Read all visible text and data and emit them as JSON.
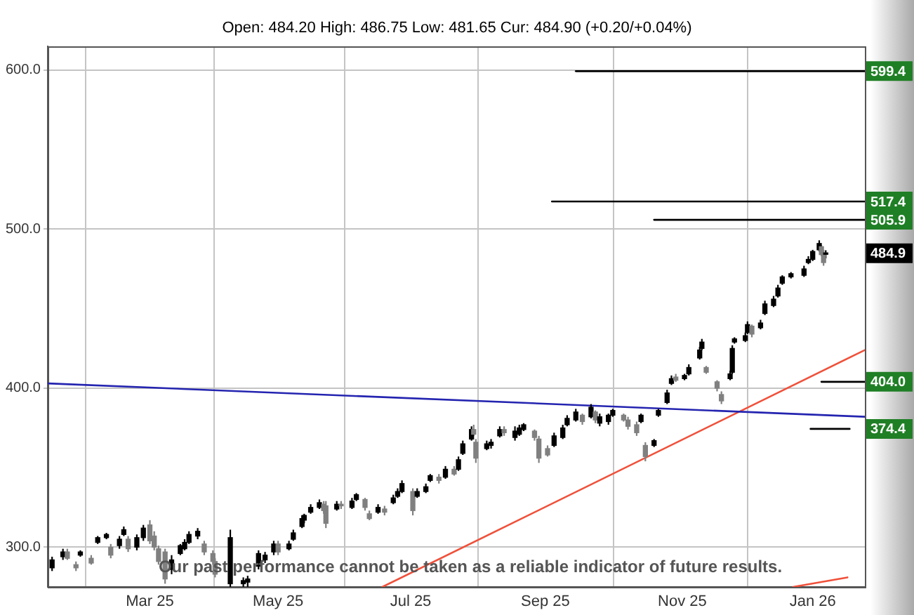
{
  "chart_data": {
    "type": "candlestick",
    "subtitle": "Open: 484.20 High: 486.75 Low: 481.65 Cur: 484.90 (+0.20/+0.04%)",
    "annotations": [
      "Our past performance cannot be taken as a reliable indicator of future results."
    ],
    "xlim": [
      "2025-01-15",
      "2026-01-26"
    ],
    "xticks": [
      {
        "value": "2025-03-03",
        "label": "Mar 25"
      },
      {
        "value": "2025-05-01",
        "label": "May 25"
      },
      {
        "value": "2025-07-01",
        "label": "Jul 25"
      },
      {
        "value": "2025-09-01",
        "label": "Sep 25"
      },
      {
        "value": "2025-11-03",
        "label": "Nov 25"
      },
      {
        "value": "2026-01-02",
        "label": "Jan 26"
      }
    ],
    "ylim": [
      275,
      615
    ],
    "yticks": [
      {
        "value": 300,
        "label": "300.0"
      },
      {
        "value": 400,
        "label": "400.0"
      },
      {
        "value": 500,
        "label": "500.0"
      },
      {
        "value": 600,
        "label": "600.0"
      }
    ],
    "grid": true,
    "series": [
      {
        "x": [
          "2025-01-17",
          "2025-01-22",
          "2025-01-24",
          "2025-01-28",
          "2025-01-30",
          "2025-02-04",
          "2025-02-07",
          "2025-02-11",
          "2025-02-13",
          "2025-02-17",
          "2025-02-19",
          "2025-02-21",
          "2025-02-25",
          "2025-02-28",
          "2025-03-03",
          "2025-03-05",
          "2025-03-07",
          "2025-03-10",
          "2025-03-13",
          "2025-03-17",
          "2025-03-19",
          "2025-03-21",
          "2025-03-25",
          "2025-03-28",
          "2025-04-01",
          "2025-04-02",
          "2025-04-09",
          "2025-04-15",
          "2025-04-17",
          "2025-04-22",
          "2025-04-25",
          "2025-04-29",
          "2025-05-01",
          "2025-05-06",
          "2025-05-08",
          "2025-05-12",
          "2025-05-13",
          "2025-05-16",
          "2025-05-20",
          "2025-05-22",
          "2025-05-23",
          "2025-05-28",
          "2025-05-30",
          "2025-06-04",
          "2025-06-06",
          "2025-06-10",
          "2025-06-12",
          "2025-06-16",
          "2025-06-19",
          "2025-06-23",
          "2025-06-25",
          "2025-06-27",
          "2025-07-02",
          "2025-07-04",
          "2025-07-08",
          "2025-07-10",
          "2025-07-14",
          "2025-07-17",
          "2025-07-21",
          "2025-07-23",
          "2025-07-25",
          "2025-07-29",
          "2025-07-30",
          "2025-07-31",
          "2025-08-05",
          "2025-08-07",
          "2025-08-11",
          "2025-08-13",
          "2025-08-18",
          "2025-08-20",
          "2025-08-22",
          "2025-08-27",
          "2025-08-29",
          "2025-09-02",
          "2025-09-05",
          "2025-09-09",
          "2025-09-11",
          "2025-09-15",
          "2025-09-18",
          "2025-09-22",
          "2025-09-24",
          "2025-09-26",
          "2025-09-30",
          "2025-10-02",
          "2025-10-07",
          "2025-10-09",
          "2025-10-13",
          "2025-10-15",
          "2025-10-17",
          "2025-10-21",
          "2025-10-23",
          "2025-10-27",
          "2025-10-29",
          "2025-10-31",
          "2025-11-04",
          "2025-11-06",
          "2025-11-11",
          "2025-11-12",
          "2025-11-14",
          "2025-11-19",
          "2025-11-21",
          "2025-11-25",
          "2025-11-26",
          "2025-11-27",
          "2025-12-02",
          "2025-12-03",
          "2025-12-05",
          "2025-12-09",
          "2025-12-11",
          "2025-12-15",
          "2025-12-17",
          "2025-12-19",
          "2025-12-23",
          "2025-12-29",
          "2025-12-31",
          "2026-01-02",
          "2026-01-05",
          "2026-01-06",
          "2026-01-07",
          "2026-01-08"
        ],
        "ohlc": [
          [
            287,
            294,
            285,
            292
          ],
          [
            294,
            299,
            292,
            297
          ],
          [
            297,
            299,
            292,
            293
          ],
          [
            289,
            291,
            285,
            287
          ],
          [
            295,
            298,
            294,
            297
          ],
          [
            293,
            295,
            289,
            290
          ],
          [
            303,
            307,
            302,
            306
          ],
          [
            306,
            309,
            305,
            308
          ],
          [
            300,
            302,
            293,
            295
          ],
          [
            301,
            307,
            299,
            305
          ],
          [
            308,
            313,
            307,
            311
          ],
          [
            305,
            307,
            297,
            299
          ],
          [
            300,
            308,
            298,
            306
          ],
          [
            306,
            314,
            304,
            312
          ],
          [
            314,
            317,
            302,
            304
          ],
          [
            307,
            310,
            298,
            300
          ],
          [
            299,
            301,
            289,
            291
          ],
          [
            297,
            299,
            277,
            280
          ],
          [
            286,
            295,
            283,
            292
          ],
          [
            296,
            302,
            295,
            301
          ],
          [
            299,
            305,
            298,
            303
          ],
          [
            303,
            310,
            302,
            308
          ],
          [
            307,
            312,
            305,
            310
          ],
          [
            302,
            304,
            295,
            297
          ],
          [
            296,
            298,
            289,
            291
          ],
          [
            291,
            293,
            281,
            283
          ],
          [
            277,
            311,
            275,
            306
          ],
          [
            277,
            281,
            275,
            279
          ],
          [
            278,
            282,
            275,
            280
          ],
          [
            288,
            298,
            286,
            296
          ],
          [
            292,
            297,
            290,
            295
          ],
          [
            297,
            304,
            295,
            302
          ],
          [
            302,
            304,
            295,
            297
          ],
          [
            299,
            304,
            298,
            302
          ],
          [
            305,
            311,
            304,
            309
          ],
          [
            313,
            320,
            312,
            318
          ],
          [
            317,
            321,
            315,
            320
          ],
          [
            322,
            327,
            321,
            325
          ],
          [
            325,
            330,
            324,
            328
          ],
          [
            327,
            329,
            321,
            323
          ],
          [
            326,
            329,
            312,
            315
          ],
          [
            324,
            329,
            323,
            327
          ],
          [
            327,
            329,
            324,
            326
          ],
          [
            325,
            331,
            324,
            329
          ],
          [
            330,
            334,
            329,
            333
          ],
          [
            330,
            331,
            323,
            325
          ],
          [
            321,
            323,
            317,
            318
          ],
          [
            322,
            327,
            321,
            325
          ],
          [
            324,
            326,
            320,
            322
          ],
          [
            328,
            333,
            327,
            331
          ],
          [
            332,
            337,
            331,
            335
          ],
          [
            335,
            342,
            334,
            340
          ],
          [
            335,
            337,
            320,
            323
          ],
          [
            332,
            337,
            331,
            335
          ],
          [
            335,
            340,
            334,
            338
          ],
          [
            342,
            346,
            341,
            345
          ],
          [
            344,
            346,
            340,
            342
          ],
          [
            344,
            351,
            343,
            349
          ],
          [
            349,
            351,
            345,
            346
          ],
          [
            349,
            357,
            348,
            355
          ],
          [
            359,
            367,
            358,
            365
          ],
          [
            368,
            376,
            367,
            374
          ],
          [
            374,
            377,
            370,
            371
          ],
          [
            366,
            368,
            353,
            356
          ],
          [
            362,
            367,
            361,
            365
          ],
          [
            364,
            368,
            362,
            366
          ],
          [
            370,
            376,
            369,
            374
          ],
          [
            374,
            376,
            370,
            372
          ],
          [
            369,
            376,
            367,
            373
          ],
          [
            371,
            377,
            370,
            375
          ],
          [
            374,
            378,
            373,
            377
          ],
          [
            373,
            374,
            367,
            369
          ],
          [
            368,
            370,
            353,
            356
          ],
          [
            362,
            364,
            357,
            358
          ],
          [
            364,
            372,
            363,
            370
          ],
          [
            369,
            377,
            368,
            375
          ],
          [
            377,
            383,
            376,
            381
          ],
          [
            380,
            387,
            379,
            385
          ],
          [
            383,
            384,
            377,
            379
          ],
          [
            382,
            390,
            381,
            388
          ],
          [
            385,
            386,
            378,
            380
          ],
          [
            378,
            384,
            376,
            382
          ],
          [
            379,
            384,
            377,
            383
          ],
          [
            383,
            387,
            382,
            386
          ],
          [
            383,
            384,
            379,
            380
          ],
          [
            380,
            382,
            374,
            376
          ],
          [
            377,
            379,
            370,
            372
          ],
          [
            379,
            384,
            378,
            383
          ],
          [
            364,
            366,
            354,
            357
          ],
          [
            364,
            368,
            363,
            367
          ],
          [
            383,
            387,
            382,
            386
          ],
          [
            391,
            399,
            390,
            397
          ],
          [
            403,
            408,
            402,
            406
          ],
          [
            407,
            409,
            404,
            405
          ],
          [
            406,
            409,
            405,
            408
          ],
          [
            409,
            415,
            408,
            413
          ],
          [
            419,
            426,
            418,
            424
          ],
          [
            425,
            431,
            424,
            429
          ],
          [
            413,
            414,
            409,
            410
          ],
          [
            404,
            405,
            398,
            400
          ],
          [
            396,
            398,
            390,
            392
          ],
          [
            406,
            411,
            405,
            409
          ],
          [
            410,
            427,
            409,
            425
          ],
          [
            429,
            432,
            428,
            431
          ],
          [
            430,
            435,
            429,
            433
          ],
          [
            435,
            442,
            434,
            440
          ],
          [
            439,
            440,
            432,
            434
          ],
          [
            438,
            443,
            437,
            441
          ],
          [
            447,
            455,
            446,
            453
          ],
          [
            452,
            458,
            451,
            456
          ],
          [
            458,
            465,
            457,
            463
          ],
          [
            466,
            471,
            465,
            470
          ],
          [
            470,
            473,
            469,
            472
          ],
          [
            471,
            477,
            470,
            475
          ],
          [
            479,
            483,
            478,
            481
          ],
          [
            481,
            487,
            480,
            486
          ],
          [
            487,
            493,
            486,
            491
          ],
          [
            489,
            490,
            483,
            484
          ],
          [
            485,
            487,
            477,
            479
          ],
          [
            484.2,
            486.75,
            481.65,
            484.9
          ]
        ],
        "colors": [
          "#000000",
          "#000000",
          "#808080",
          "#808080",
          "#000000",
          "#808080",
          "#000000",
          "#000000",
          "#808080",
          "#000000",
          "#000000",
          "#808080",
          "#000000",
          "#000000",
          "#808080",
          "#808080",
          "#808080",
          "#808080",
          "#000000",
          "#000000",
          "#000000",
          "#000000",
          "#000000",
          "#808080",
          "#808080",
          "#808080",
          "#000000",
          "#000000",
          "#000000",
          "#000000",
          "#000000",
          "#000000",
          "#808080",
          "#000000",
          "#000000",
          "#000000",
          "#000000",
          "#000000",
          "#000000",
          "#808080",
          "#808080",
          "#000000",
          "#808080",
          "#000000",
          "#000000",
          "#808080",
          "#808080",
          "#000000",
          "#808080",
          "#000000",
          "#000000",
          "#000000",
          "#808080",
          "#000000",
          "#000000",
          "#000000",
          "#808080",
          "#000000",
          "#808080",
          "#000000",
          "#000000",
          "#000000",
          "#808080",
          "#808080",
          "#000000",
          "#000000",
          "#000000",
          "#808080",
          "#000000",
          "#000000",
          "#000000",
          "#808080",
          "#808080",
          "#808080",
          "#000000",
          "#000000",
          "#000000",
          "#000000",
          "#808080",
          "#000000",
          "#808080",
          "#000000",
          "#000000",
          "#000000",
          "#808080",
          "#808080",
          "#808080",
          "#000000",
          "#808080",
          "#000000",
          "#000000",
          "#000000",
          "#000000",
          "#808080",
          "#000000",
          "#000000",
          "#000000",
          "#000000",
          "#808080",
          "#808080",
          "#808080",
          "#000000",
          "#000000",
          "#000000",
          "#000000",
          "#000000",
          "#808080",
          "#000000",
          "#000000",
          "#000000",
          "#000000",
          "#000000",
          "#000000",
          "#000000",
          "#000000",
          "#000000",
          "#000000",
          "#808080",
          "#808080",
          "#000000"
        ],
        "value_labels": [
          null,
          null,
          null,
          null,
          null,
          null,
          null,
          null,
          null,
          null,
          null,
          null,
          null,
          null,
          null,
          null,
          null,
          null,
          null,
          null,
          null,
          null,
          null,
          null,
          null,
          null,
          null,
          null,
          null,
          null,
          null,
          null,
          null,
          null,
          null,
          null,
          null,
          null,
          null,
          null,
          null,
          null,
          null,
          null,
          null,
          null,
          null,
          null,
          null,
          null,
          null,
          null,
          null,
          null,
          null,
          null,
          null,
          null,
          null,
          null,
          null,
          null,
          null,
          null,
          null,
          null,
          null,
          null,
          null,
          null,
          null,
          null,
          null,
          null,
          null,
          null,
          null,
          null,
          null,
          null,
          null,
          null,
          null,
          null,
          null,
          null,
          null,
          null,
          null,
          null,
          null,
          null,
          null,
          null,
          null,
          null,
          null,
          null,
          null,
          null,
          null,
          null,
          null,
          null,
          null,
          null,
          null,
          null,
          null,
          null,
          null,
          null,
          null,
          null,
          null,
          null,
          null,
          null,
          null,
          "484.9"
        ]
      },
      {
        "type": "line",
        "color": "#2424b0",
        "x": [
          "2025-01-15",
          "2026-01-26"
        ],
        "values": [
          403,
          382
        ]
      },
      {
        "type": "line",
        "color": "#f0503a",
        "x": [
          "2025-06-18",
          "2026-01-26"
        ],
        "values": [
          275,
          424
        ]
      },
      {
        "type": "line",
        "color": "#f0503a",
        "x": [
          "2025-12-24",
          "2026-01-18"
        ],
        "values": [
          275,
          281
        ]
      },
      {
        "type": "line",
        "color": "#000000",
        "x": [
          "2025-09-15",
          "2026-01-26"
        ],
        "values": [
          599.4,
          599.4
        ],
        "value_labels": [
          null,
          "599.4"
        ]
      },
      {
        "type": "line",
        "color": "#000000",
        "x": [
          "2025-09-04",
          "2026-01-26"
        ],
        "values": [
          517.4,
          517.4
        ],
        "value_labels": [
          null,
          "517.4"
        ]
      },
      {
        "type": "line",
        "color": "#000000",
        "x": [
          "2025-10-21",
          "2026-01-26"
        ],
        "values": [
          505.9,
          505.9
        ],
        "value_labels": [
          null,
          "505.9"
        ]
      },
      {
        "type": "line",
        "color": "#000000",
        "x": [
          "2026-01-06",
          "2026-01-26"
        ],
        "values": [
          404.0,
          404.0
        ],
        "value_labels": [
          null,
          "404.0"
        ]
      },
      {
        "type": "line",
        "color": "#000000",
        "x": [
          "2026-01-01",
          "2026-01-19"
        ],
        "values": [
          374.4,
          374.4
        ],
        "value_labels": [
          null,
          "374.4"
        ]
      }
    ]
  }
}
